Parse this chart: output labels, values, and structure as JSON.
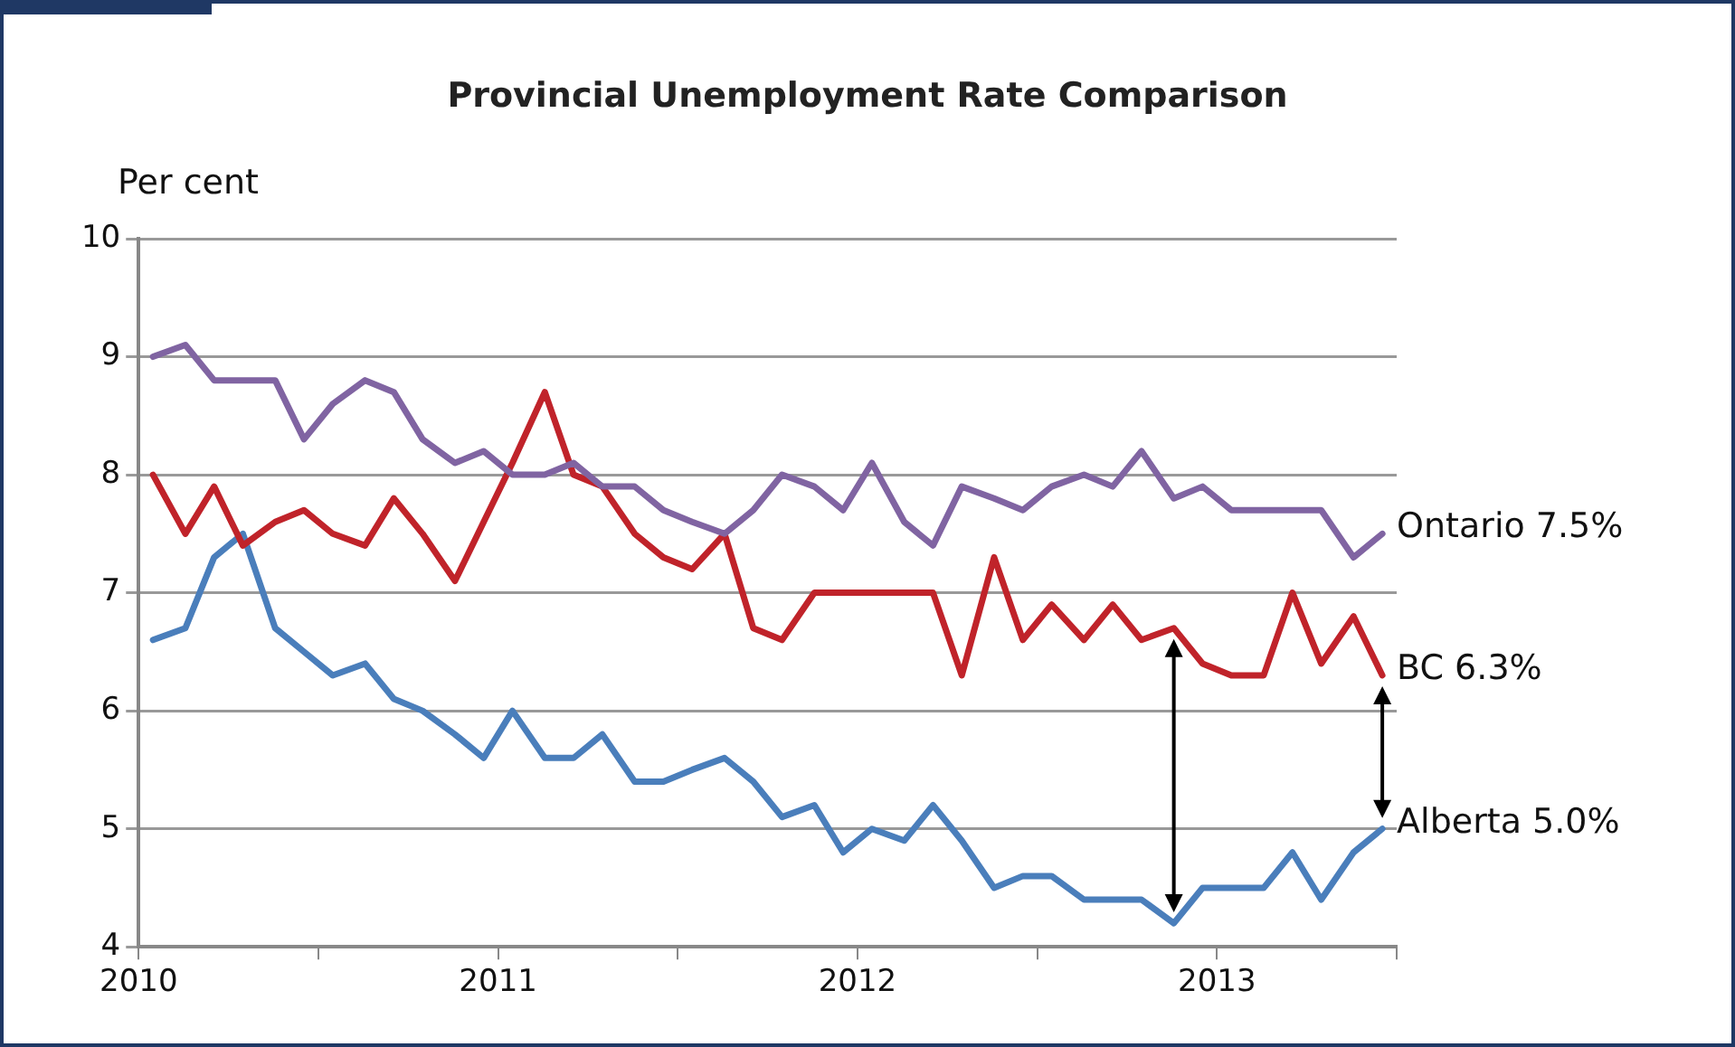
{
  "chart_data": {
    "type": "line",
    "title": "Provincial Unemployment Rate Comparison",
    "ylabel": "Per cent",
    "x": [
      2010.04,
      2010.13,
      2010.21,
      2010.29,
      2010.38,
      2010.46,
      2010.54,
      2010.63,
      2010.71,
      2010.79,
      2010.88,
      2010.96,
      2011.04,
      2011.13,
      2011.21,
      2011.29,
      2011.38,
      2011.46,
      2011.54,
      2011.63,
      2011.71,
      2011.79,
      2011.88,
      2011.96,
      2012.04,
      2012.13,
      2012.21,
      2012.29,
      2012.38,
      2012.46,
      2012.54,
      2012.63,
      2012.71,
      2012.79,
      2012.88,
      2012.96,
      2013.04,
      2013.13,
      2013.21,
      2013.29,
      2013.38,
      2013.46
    ],
    "series": [
      {
        "name": "Ontario 7.5%",
        "color": "#8064a2",
        "values": [
          9.0,
          9.1,
          8.8,
          8.8,
          8.8,
          8.3,
          8.6,
          8.8,
          8.7,
          8.3,
          8.1,
          8.2,
          8.0,
          8.0,
          8.1,
          7.9,
          7.9,
          7.7,
          7.6,
          7.5,
          7.7,
          8.0,
          7.9,
          7.7,
          8.1,
          7.6,
          7.4,
          7.9,
          7.8,
          7.7,
          7.9,
          8.0,
          7.9,
          8.2,
          7.8,
          7.9,
          7.7,
          7.7,
          7.7,
          7.7,
          7.3,
          7.5
        ]
      },
      {
        "name": "BC 6.3%",
        "color": "#c0232a",
        "values": [
          8.0,
          7.5,
          7.9,
          7.4,
          7.6,
          7.7,
          7.5,
          7.4,
          7.8,
          7.5,
          7.1,
          7.6,
          8.1,
          8.7,
          8.0,
          7.9,
          7.5,
          7.3,
          7.2,
          7.5,
          6.7,
          6.6,
          7.0,
          7.0,
          7.0,
          7.0,
          7.0,
          6.3,
          7.3,
          6.6,
          6.9,
          6.6,
          6.9,
          6.6,
          6.7,
          6.4,
          6.3,
          6.3,
          7.0,
          6.4,
          6.8,
          6.3
        ]
      },
      {
        "name": "Alberta 5.0%",
        "color": "#4a7ebb",
        "values": [
          6.6,
          6.7,
          7.3,
          7.5,
          6.7,
          6.5,
          6.3,
          6.4,
          6.1,
          6.0,
          5.8,
          5.6,
          6.0,
          5.6,
          5.6,
          5.8,
          5.4,
          5.4,
          5.5,
          5.6,
          5.4,
          5.1,
          5.2,
          4.8,
          5.0,
          4.9,
          5.2,
          4.9,
          4.5,
          4.6,
          4.6,
          4.4,
          4.4,
          4.4,
          4.2,
          4.5,
          4.5,
          4.5,
          4.8,
          4.4,
          4.8,
          5.0
        ]
      }
    ],
    "xlim": [
      2010,
      2013.5
    ],
    "xticks": [
      2010,
      {
        "value": 2010.5,
        "label": null
      },
      2011,
      {
        "value": 2011.5,
        "label": null
      },
      2012,
      {
        "value": 2012.5,
        "label": null
      },
      2013,
      {
        "value": 2013.5,
        "label": null
      }
    ],
    "ylim": [
      4,
      10
    ],
    "yticks": [
      4,
      5,
      6,
      7,
      8,
      9,
      10
    ],
    "grid": "y",
    "legend": false,
    "marker": "none",
    "line_style": "solid"
  }
}
